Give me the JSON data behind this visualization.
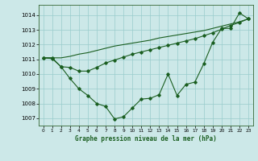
{
  "title": "Graphe pression niveau de la mer (hPa)",
  "bg_color": "#cce8e8",
  "grid_color": "#99cccc",
  "line_color": "#1a5e20",
  "x_labels": [
    "0",
    "1",
    "2",
    "3",
    "4",
    "5",
    "6",
    "7",
    "8",
    "9",
    "10",
    "11",
    "12",
    "13",
    "14",
    "15",
    "16",
    "17",
    "18",
    "19",
    "20",
    "21",
    "22",
    "23"
  ],
  "ylim": [
    1006.5,
    1014.7
  ],
  "yticks": [
    1007,
    1008,
    1009,
    1010,
    1011,
    1012,
    1013,
    1014
  ],
  "series_zigzag": [
    1011.1,
    1011.1,
    1010.5,
    1009.7,
    1009.0,
    1008.55,
    1008.0,
    1007.8,
    1006.95,
    1007.1,
    1007.7,
    1008.3,
    1008.35,
    1008.6,
    1010.0,
    1008.55,
    1009.3,
    1009.45,
    1010.7,
    1012.15,
    1013.1,
    1013.1,
    1014.15,
    1013.75
  ],
  "series_smooth": [
    1011.1,
    1011.05,
    1010.5,
    1010.45,
    1010.2,
    1010.2,
    1010.45,
    1010.75,
    1010.95,
    1011.15,
    1011.35,
    1011.5,
    1011.65,
    1011.8,
    1011.95,
    1012.1,
    1012.25,
    1012.4,
    1012.6,
    1012.8,
    1013.05,
    1013.3,
    1013.5,
    1013.75
  ],
  "series_linear": [
    1011.1,
    1011.1,
    1011.1,
    1011.2,
    1011.35,
    1011.45,
    1011.6,
    1011.75,
    1011.9,
    1012.0,
    1012.1,
    1012.2,
    1012.3,
    1012.45,
    1012.55,
    1012.65,
    1012.75,
    1012.85,
    1012.95,
    1013.1,
    1013.25,
    1013.4,
    1013.55,
    1013.75
  ],
  "figsize": [
    3.2,
    2.0
  ],
  "dpi": 100
}
